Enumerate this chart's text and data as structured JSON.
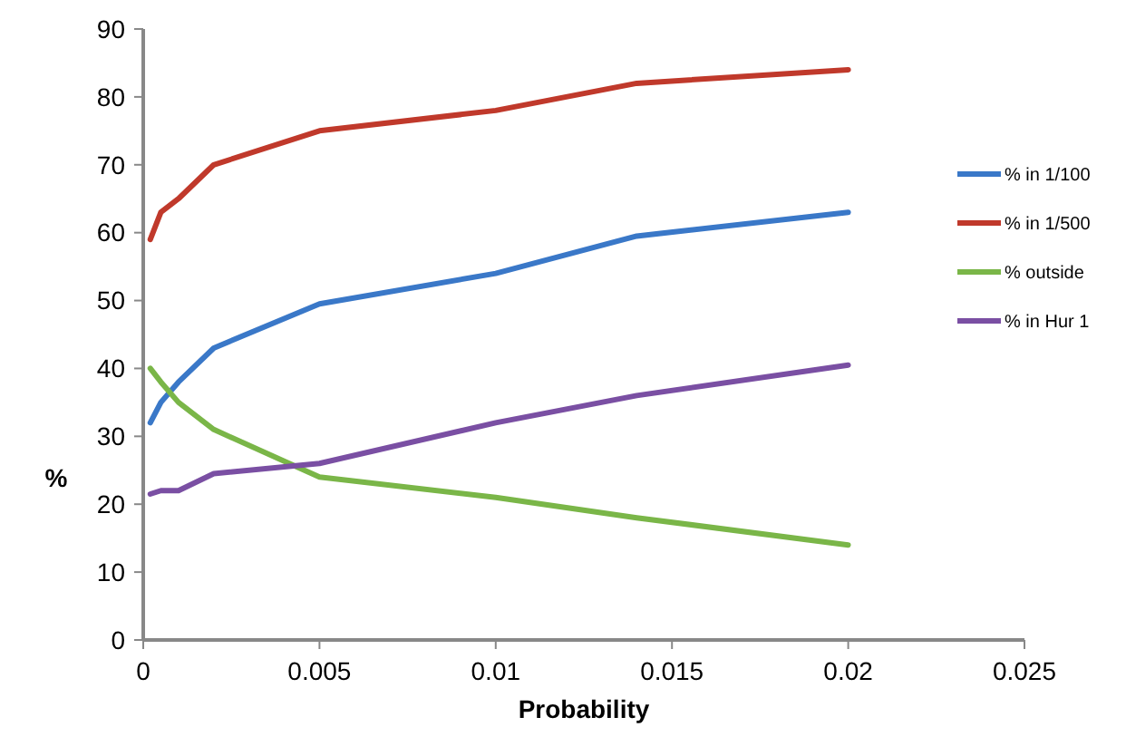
{
  "chart_data": {
    "type": "line",
    "xlabel": "Probability",
    "ylabel": "%",
    "x": [
      0.0002,
      0.0005,
      0.001,
      0.002,
      0.005,
      0.01,
      0.014,
      0.02
    ],
    "series": [
      {
        "name": "% in 1/100",
        "color": "#3a78c8",
        "values": [
          32,
          35,
          38,
          43,
          49.5,
          54,
          59.5,
          63
        ]
      },
      {
        "name": "% in 1/500",
        "color": "#c0392b",
        "values": [
          59,
          63,
          65,
          70,
          75,
          78,
          82,
          84
        ]
      },
      {
        "name": "% outside",
        "color": "#7ab648",
        "values": [
          40,
          38,
          35,
          31,
          24,
          21,
          18,
          14
        ]
      },
      {
        "name": "% in Hur 1",
        "color": "#7a4fa3",
        "values": [
          21.5,
          22,
          22,
          24.5,
          26,
          32,
          36,
          40.5
        ]
      }
    ],
    "xlim": [
      0,
      0.025
    ],
    "xticks": [
      0,
      0.005,
      0.01,
      0.015,
      0.02,
      0.025
    ],
    "ylim": [
      0,
      90
    ],
    "yticks": [
      0,
      10,
      20,
      30,
      40,
      50,
      60,
      70,
      80,
      90
    ],
    "grid": false,
    "legend": "right",
    "line_style": "solid"
  }
}
